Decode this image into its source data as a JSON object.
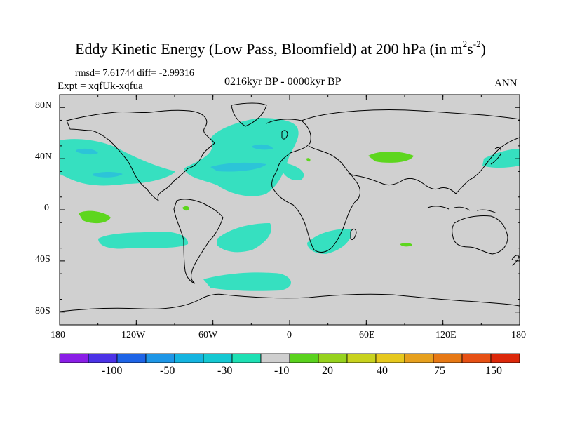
{
  "title": {
    "main": "Eddy Kinetic Energy (Low Pass, Bloomfield) at 200 hPa (in m",
    "sup1": "2",
    "mid": "s",
    "sup2": "-2",
    "end": ")"
  },
  "stats": "rmsd= 7.61744 diff= -2.99316",
  "experiment": "Expt = xqfUk-xqfua",
  "period": "0216kyr BP - 0000kyr BP",
  "season": "ANN",
  "lat_labels": [
    "80N",
    "40N",
    "0",
    "40S",
    "80S"
  ],
  "lon_labels": [
    "180",
    "120W",
    "60W",
    "0",
    "60E",
    "120E",
    "180"
  ],
  "colorbar": {
    "colors": [
      "#8a1ee6",
      "#4b32e6",
      "#1e64e6",
      "#1e96e6",
      "#14b4e0",
      "#14c8d2",
      "#1ee0b4",
      "#cfcfcf",
      "#5ad21e",
      "#96d21e",
      "#c8d21e",
      "#e6c81e",
      "#e6a01e",
      "#e67814",
      "#e65014",
      "#dc280a"
    ],
    "labels": [
      "-100",
      "-50",
      "-30",
      "-10",
      "20",
      "40",
      "75",
      "150"
    ]
  },
  "map_colors": {
    "background": "#d0d0d0",
    "negative_light": "#36e0c0",
    "negative_mid": "#2cc4d8",
    "positive": "#5dd61e",
    "coast": "#000000"
  }
}
